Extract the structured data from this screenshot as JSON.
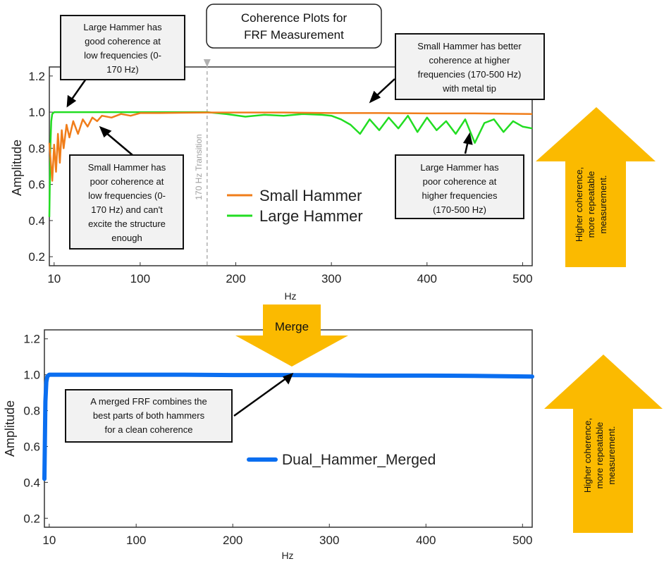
{
  "title": [
    "Coherence Plots for",
    "FRF Measurement"
  ],
  "transition_label": "170 Hz Transition",
  "merge_label": "Merge",
  "arrow_label": [
    "Higher coherence,",
    "more repeatable",
    "measurement."
  ],
  "colors": {
    "small": "#f07d1a",
    "large": "#22dd22",
    "merged": "#0a6ef0",
    "arrow": "#fbba00",
    "callout_fill": "#f2f2f2"
  },
  "callouts": {
    "large_good": [
      "Large Hammer has",
      "good coherence at",
      "low frequencies (0-",
      "170 Hz)"
    ],
    "small_poor": [
      "Small Hammer has",
      "poor coherence at",
      "low frequencies (0-",
      "170 Hz) and can't",
      "excite the structure",
      "enough"
    ],
    "small_better": [
      "Small Hammer has better",
      "coherence at higher",
      "frequencies (170-500 Hz)",
      "with metal tip"
    ],
    "large_poor": [
      "Large Hammer has",
      "poor coherence at",
      "higher frequencies",
      "(170-500 Hz)"
    ],
    "merged": [
      "A merged FRF combines the",
      "best parts of both hammers",
      "for a clean coherence"
    ]
  },
  "chart_data": [
    {
      "type": "line",
      "title": "Coherence Plots for FRF Measurement",
      "xlabel": "Hz",
      "ylabel": "Amplitude",
      "xlim": [
        5,
        510
      ],
      "ylim": [
        0.15,
        1.25
      ],
      "xticks": [
        10,
        100,
        200,
        300,
        400,
        500
      ],
      "yticks": [
        0.2,
        0.4,
        0.6,
        0.8,
        1.0,
        1.2
      ],
      "vline": {
        "x": 170,
        "label": "170 Hz Transition"
      },
      "legend_position": "center",
      "series": [
        {
          "name": "Small Hammer",
          "x": [
            5,
            8,
            10,
            12,
            14,
            16,
            18,
            20,
            23,
            26,
            30,
            35,
            40,
            45,
            50,
            55,
            60,
            70,
            80,
            90,
            100,
            120,
            150,
            170,
            200,
            250,
            300,
            350,
            400,
            450,
            510
          ],
          "y": [
            0.83,
            0.62,
            0.82,
            0.67,
            0.88,
            0.72,
            0.9,
            0.8,
            0.93,
            0.86,
            0.95,
            0.88,
            0.96,
            0.92,
            0.97,
            0.95,
            0.98,
            0.97,
            0.99,
            0.98,
            0.995,
            0.995,
            0.997,
            0.998,
            0.998,
            0.998,
            0.995,
            0.995,
            0.993,
            0.993,
            0.99
          ]
        },
        {
          "name": "Large Hammer",
          "x": [
            5,
            6,
            7,
            8,
            10,
            15,
            20,
            50,
            100,
            150,
            170,
            190,
            210,
            230,
            250,
            270,
            290,
            300,
            310,
            320,
            330,
            340,
            350,
            360,
            370,
            380,
            390,
            400,
            410,
            420,
            430,
            440,
            450,
            460,
            470,
            480,
            490,
            500,
            510
          ],
          "y": [
            0.42,
            0.8,
            0.95,
            0.99,
            1.0,
            1.0,
            1.0,
            1.0,
            1.0,
            1.0,
            1.0,
            0.99,
            0.975,
            0.985,
            0.98,
            0.99,
            0.985,
            0.98,
            0.96,
            0.93,
            0.88,
            0.96,
            0.9,
            0.97,
            0.91,
            0.98,
            0.89,
            0.97,
            0.9,
            0.95,
            0.88,
            0.96,
            0.83,
            0.94,
            0.96,
            0.89,
            0.95,
            0.92,
            0.91
          ]
        }
      ]
    },
    {
      "type": "line",
      "xlabel": "Hz",
      "ylabel": "Amplitude",
      "xlim": [
        5,
        510
      ],
      "ylim": [
        0.15,
        1.25
      ],
      "xticks": [
        10,
        100,
        200,
        300,
        400,
        500
      ],
      "yticks": [
        0.2,
        0.4,
        0.6,
        0.8,
        1.0,
        1.2
      ],
      "legend_position": "center",
      "series": [
        {
          "name": "Dual_Hammer_Merged",
          "x": [
            5,
            6,
            7,
            8,
            10,
            15,
            20,
            50,
            100,
            150,
            200,
            250,
            300,
            350,
            400,
            450,
            510
          ],
          "y": [
            0.42,
            0.85,
            0.96,
            0.99,
            1.0,
            1.0,
            1.0,
            1.0,
            1.0,
            1.0,
            0.998,
            0.998,
            0.997,
            0.995,
            0.995,
            0.994,
            0.99
          ]
        }
      ]
    }
  ]
}
